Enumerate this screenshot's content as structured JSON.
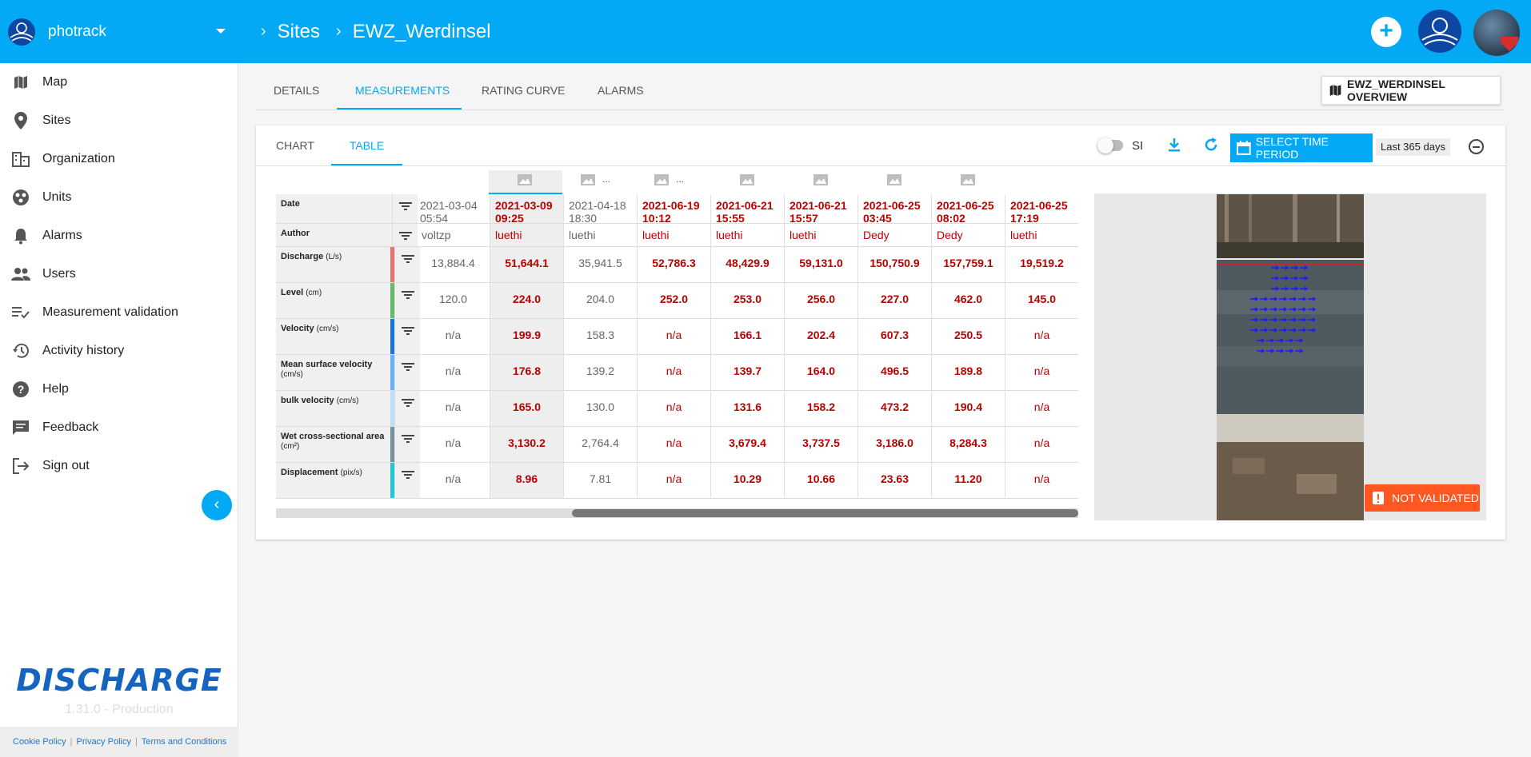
{
  "org": {
    "name": "photrack"
  },
  "breadcrumb": {
    "item1": "Sites",
    "item2": "EWZ_Werdinsel"
  },
  "sidebar": {
    "items": [
      {
        "label": "Map",
        "icon": "map-icon"
      },
      {
        "label": "Sites",
        "icon": "pin-icon"
      },
      {
        "label": "Organization",
        "icon": "building-icon"
      },
      {
        "label": "Units",
        "icon": "units-icon"
      },
      {
        "label": "Alarms",
        "icon": "bell-icon"
      },
      {
        "label": "Users",
        "icon": "users-icon"
      },
      {
        "label": "Measurement validation",
        "icon": "checklist-icon"
      },
      {
        "label": "Activity history",
        "icon": "history-icon"
      },
      {
        "label": "Help",
        "icon": "help-icon"
      },
      {
        "label": "Feedback",
        "icon": "feedback-icon"
      },
      {
        "label": "Sign out",
        "icon": "sign-out-icon"
      }
    ],
    "brand": "DISCHARGE",
    "version": "1.31.0 - Production",
    "footer": {
      "cookie": "Cookie Policy",
      "privacy": "Privacy Policy",
      "terms": "Terms and Conditions"
    }
  },
  "tabs": [
    "DETAILS",
    "MEASUREMENTS",
    "RATING CURVE",
    "ALARMS"
  ],
  "overview_button": "EWZ_WERDINSEL OVERVIEW",
  "subtabs": [
    "CHART",
    "TABLE"
  ],
  "toolbar": {
    "si_label": "SI",
    "select_period": "SELECT TIME PERIOD",
    "period_value": "Last 365 days"
  },
  "table": {
    "row_labels": {
      "date": "Date",
      "author": "Author",
      "discharge": "Discharge",
      "discharge_unit": "(L/s)",
      "level": "Level",
      "level_unit": "(cm)",
      "velocity": "Velocity",
      "velocity_unit": "(cm/s)",
      "msv": "Mean surface velocity",
      "msv_unit": "(cm/s)",
      "bulk": "bulk velocity",
      "bulk_unit": "(cm/s)",
      "wca": "Wet cross-sectional area",
      "wca_unit": "(cm²)",
      "disp": "Displacement",
      "disp_unit": "(pix/s)"
    },
    "row_colors": [
      "#e57373",
      "#66bb6a",
      "#1976d2",
      "#64b5f6",
      "#bbdefb",
      "#78909c",
      "#26c6da"
    ],
    "columns": [
      {
        "date": "2021-03-04",
        "time": "05:54",
        "author": "voltzp",
        "discharge": "13,884.4",
        "level": "120.0",
        "velocity": "n/a",
        "msv": "n/a",
        "bulk": "n/a",
        "wca": "n/a",
        "disp": "n/a",
        "style": "gray"
      },
      {
        "date": "2021-03-09",
        "time": "09:25",
        "author": "luethi",
        "discharge": "51,644.1",
        "level": "224.0",
        "velocity": "199.9",
        "msv": "176.8",
        "bulk": "165.0",
        "wca": "3,130.2",
        "disp": "8.96",
        "style": "red"
      },
      {
        "date": "2021-04-18",
        "time": "18:30",
        "author": "luethi",
        "discharge": "35,941.5",
        "level": "204.0",
        "velocity": "158.3",
        "msv": "139.2",
        "bulk": "130.0",
        "wca": "2,764.4",
        "disp": "7.81",
        "style": "gray"
      },
      {
        "date": "2021-06-19",
        "time": "10:12",
        "author": "luethi",
        "discharge": "52,786.3",
        "level": "252.0",
        "velocity": "n/a",
        "msv": "n/a",
        "bulk": "n/a",
        "wca": "n/a",
        "disp": "n/a",
        "style": "red"
      },
      {
        "date": "2021-06-21",
        "time": "15:55",
        "author": "luethi",
        "discharge": "48,429.9",
        "level": "253.0",
        "velocity": "166.1",
        "msv": "139.7",
        "bulk": "131.6",
        "wca": "3,679.4",
        "disp": "10.29",
        "style": "red"
      },
      {
        "date": "2021-06-21",
        "time": "15:57",
        "author": "luethi",
        "discharge": "59,131.0",
        "level": "256.0",
        "velocity": "202.4",
        "msv": "164.0",
        "bulk": "158.2",
        "wca": "3,737.5",
        "disp": "10.66",
        "style": "red"
      },
      {
        "date": "2021-06-25",
        "time": "03:45",
        "author": "Dedy",
        "discharge": "150,750.9",
        "level": "227.0",
        "velocity": "607.3",
        "msv": "496.5",
        "bulk": "473.2",
        "wca": "3,186.0",
        "disp": "23.63",
        "style": "red"
      },
      {
        "date": "2021-06-25",
        "time": "08:02",
        "author": "Dedy",
        "discharge": "157,759.1",
        "level": "462.0",
        "velocity": "250.5",
        "msv": "189.8",
        "bulk": "190.4",
        "wca": "8,284.3",
        "disp": "11.20",
        "style": "red"
      },
      {
        "date": "2021-06-25",
        "time": "17:19",
        "author": "luethi",
        "discharge": "19,519.2",
        "level": "145.0",
        "velocity": "n/a",
        "msv": "n/a",
        "bulk": "n/a",
        "wca": "n/a",
        "disp": "n/a",
        "style": "red"
      }
    ],
    "ellipsis": "..."
  },
  "badge": {
    "not_validated": "NOT VALIDATED"
  }
}
